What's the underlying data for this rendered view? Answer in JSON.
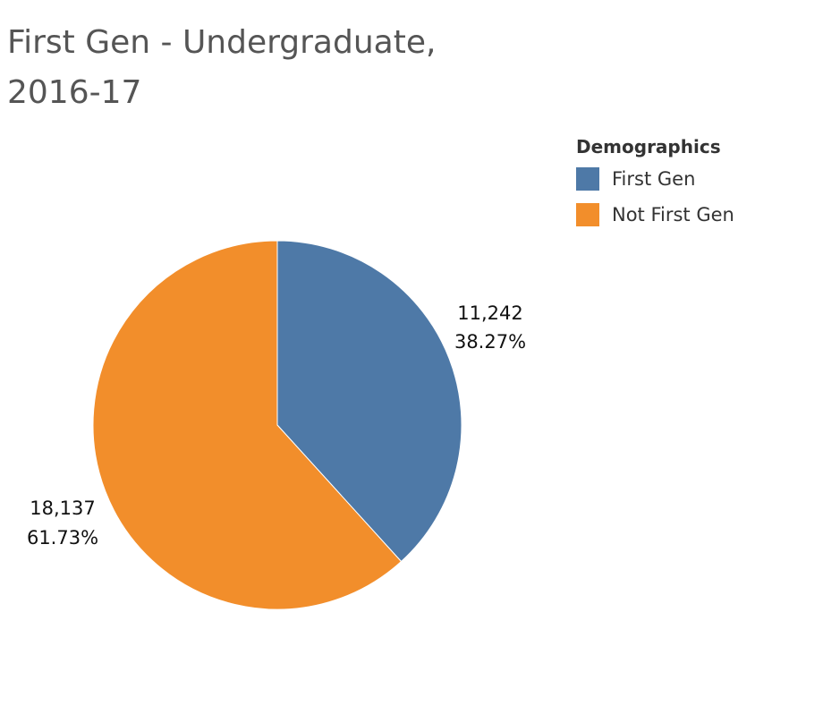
{
  "chart_data": {
    "type": "pie",
    "title_line1": "First Gen - Undergraduate,",
    "title_line2": "2016-17",
    "legend_title": "Demographics",
    "categories": [
      "First Gen",
      "Not First Gen"
    ],
    "values": [
      11242,
      18137
    ],
    "value_labels": [
      "11,242",
      "18,137"
    ],
    "percent_labels": [
      "38.27%",
      "61.73%"
    ],
    "colors": [
      "#4e79a7",
      "#f28e2b"
    ],
    "legend_position": "top-right",
    "start_angle": "12 o'clock",
    "direction": "clockwise"
  }
}
